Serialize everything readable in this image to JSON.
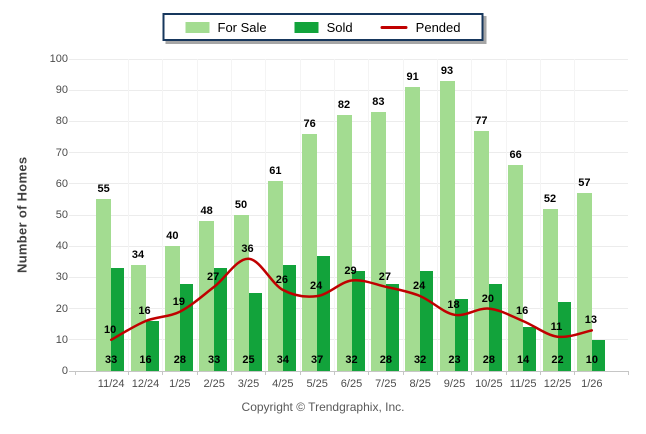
{
  "legend": {
    "border_color": "#17375D",
    "items": [
      {
        "label": "For Sale",
        "swatch": "rect",
        "color": "#A3DC91"
      },
      {
        "label": "Sold",
        "swatch": "rect",
        "color": "#12A33B"
      },
      {
        "label": "Pended",
        "swatch": "line",
        "color": "#C00000"
      }
    ]
  },
  "footer": {
    "copyright": "Copyright © Trendgraphix, Inc."
  },
  "chart_data": {
    "type": "bar",
    "title": "",
    "categories": [
      "11/24",
      "12/24",
      "1/25",
      "2/25",
      "3/25",
      "4/25",
      "5/25",
      "6/25",
      "7/25",
      "8/25",
      "9/25",
      "10/25",
      "11/25",
      "12/25",
      "1/26"
    ],
    "series": [
      {
        "name": "For Sale",
        "kind": "bar",
        "color": "#A3DC91",
        "values": [
          55,
          34,
          40,
          48,
          50,
          61,
          76,
          82,
          83,
          91,
          93,
          77,
          66,
          52,
          57
        ]
      },
      {
        "name": "Sold",
        "kind": "bar",
        "color": "#12A33B",
        "values": [
          33,
          16,
          28,
          33,
          25,
          34,
          37,
          32,
          28,
          32,
          23,
          28,
          14,
          22,
          10
        ]
      },
      {
        "name": "Pended",
        "kind": "line",
        "color": "#C00000",
        "values": [
          10,
          16,
          19,
          27,
          36,
          26,
          24,
          29,
          27,
          24,
          18,
          20,
          16,
          11,
          13
        ]
      }
    ],
    "xlabel": "",
    "ylabel": "Number of Homes",
    "ylim": [
      0,
      100
    ],
    "yticks": [
      0,
      10,
      20,
      30,
      40,
      50,
      60,
      70,
      80,
      90,
      100
    ],
    "grid": true,
    "legend_position": "top",
    "data_labels": true
  },
  "colors": {
    "h_gridline": "#ECECEC",
    "v_gridline": "#F4F4F4",
    "axis": "#C6C6C6",
    "tick_label": "#4C4C4C",
    "value_label": "#000000",
    "y_title": "#3F3F3F",
    "footer_text": "#595959",
    "legend_shadow": "#A6A6A6"
  }
}
